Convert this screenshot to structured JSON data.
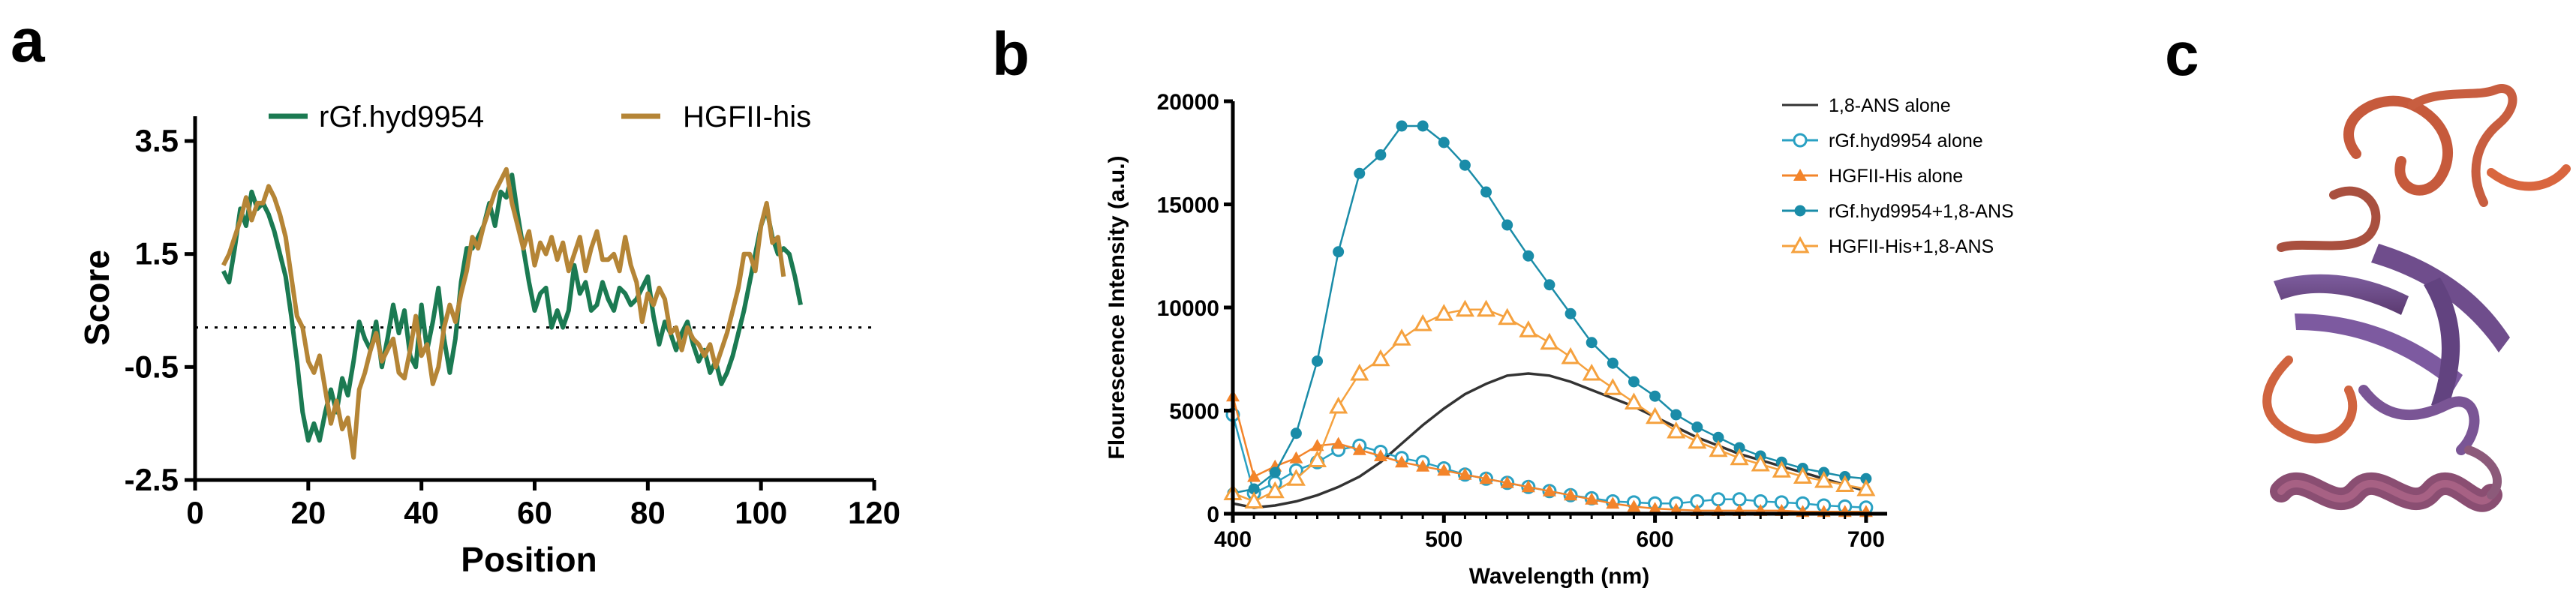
{
  "panels": {
    "a": "a",
    "b": "b",
    "c": "c"
  },
  "chart_data": [
    {
      "id": "a",
      "type": "line",
      "title": "",
      "xlabel": "Position",
      "ylabel": "Score",
      "xlim": [
        0,
        120
      ],
      "ylim": [
        -2.5,
        4.2
      ],
      "xticks": [
        0,
        20,
        40,
        60,
        80,
        100,
        120
      ],
      "yticks": [
        -2.5,
        -0.5,
        1.5,
        3.5
      ],
      "xtick_labels": [
        "0",
        "20",
        "40",
        "60",
        "80",
        "100",
        "120"
      ],
      "ytick_labels": [
        "-2.5",
        "-0.5",
        "1.5",
        "3.5"
      ],
      "reference_line": 0.2,
      "legend": [
        "rGf.hyd9954",
        "HGFII-his"
      ],
      "series": [
        {
          "name": "rGf.hyd9954",
          "color": "#1b7a52",
          "x": [
            5,
            6,
            7,
            8,
            9,
            10,
            11,
            12,
            13,
            14,
            15,
            16,
            17,
            18,
            19,
            20,
            21,
            22,
            23,
            24,
            25,
            26,
            27,
            28,
            29,
            30,
            31,
            32,
            33,
            34,
            35,
            36,
            37,
            38,
            39,
            40,
            41,
            42,
            43,
            44,
            45,
            46,
            47,
            48,
            49,
            50,
            51,
            52,
            53,
            54,
            55,
            56,
            57,
            58,
            59,
            60,
            61,
            62,
            63,
            64,
            65,
            66,
            67,
            68,
            69,
            70,
            71,
            72,
            73,
            74,
            75,
            76,
            77,
            78,
            79,
            80,
            81,
            82,
            83,
            84,
            85,
            86,
            87,
            88,
            89,
            90,
            91,
            92,
            93,
            94,
            95,
            96,
            97,
            98,
            99,
            100,
            101,
            102,
            103,
            104,
            105,
            106,
            107
          ],
          "values": [
            1.2,
            1.0,
            1.6,
            2.3,
            2.0,
            2.6,
            2.3,
            2.4,
            2.2,
            1.9,
            1.5,
            1.1,
            0.4,
            -0.4,
            -1.3,
            -1.8,
            -1.5,
            -1.8,
            -1.3,
            -0.9,
            -1.3,
            -0.7,
            -1.0,
            -0.4,
            0.3,
            0.0,
            -0.2,
            0.3,
            -0.5,
            0.0,
            0.6,
            0.1,
            0.5,
            -0.3,
            -0.5,
            0.6,
            -0.2,
            0.3,
            0.9,
            0.0,
            -0.6,
            0.0,
            1.0,
            1.6,
            1.6,
            1.8,
            2.0,
            2.4,
            2.0,
            2.6,
            2.5,
            2.9,
            2.2,
            1.6,
            1.0,
            0.5,
            0.8,
            0.9,
            0.2,
            0.5,
            0.2,
            0.5,
            1.3,
            0.8,
            1.0,
            0.5,
            0.6,
            1.0,
            0.7,
            0.5,
            0.9,
            0.8,
            0.6,
            0.7,
            0.9,
            1.1,
            0.4,
            -0.1,
            0.3,
            0.1,
            -0.2,
            0.1,
            0.3,
            -0.1,
            -0.4,
            -0.2,
            -0.6,
            -0.4,
            -0.8,
            -0.6,
            -0.3,
            0.1,
            0.5,
            1.0,
            1.5,
            2.0,
            2.3,
            1.8,
            1.5,
            1.6,
            1.5,
            1.1,
            0.6
          ]
        },
        {
          "name": "HGFII-his",
          "color": "#b58536",
          "x": [
            5,
            6,
            7,
            8,
            9,
            10,
            11,
            12,
            13,
            14,
            15,
            16,
            17,
            18,
            19,
            20,
            21,
            22,
            23,
            24,
            25,
            26,
            27,
            28,
            29,
            30,
            31,
            32,
            33,
            34,
            35,
            36,
            37,
            38,
            39,
            40,
            41,
            42,
            43,
            44,
            45,
            46,
            47,
            48,
            49,
            50,
            51,
            52,
            53,
            54,
            55,
            56,
            57,
            58,
            59,
            60,
            61,
            62,
            63,
            64,
            65,
            66,
            67,
            68,
            69,
            70,
            71,
            72,
            73,
            74,
            75,
            76,
            77,
            78,
            79,
            80,
            81,
            82,
            83,
            84,
            85,
            86,
            87,
            88,
            89,
            90,
            91,
            92,
            93,
            94,
            95,
            96,
            97,
            98,
            99,
            100,
            101,
            102,
            103,
            104
          ],
          "values": [
            1.3,
            1.5,
            1.8,
            2.1,
            2.5,
            2.1,
            2.4,
            2.4,
            2.7,
            2.5,
            2.2,
            1.8,
            1.1,
            0.4,
            0.2,
            -0.4,
            -0.6,
            -0.3,
            -0.9,
            -1.5,
            -1.1,
            -1.6,
            -1.4,
            -2.1,
            -0.9,
            -0.6,
            -0.2,
            0.1,
            -0.4,
            -0.2,
            0.0,
            -0.6,
            -0.7,
            -0.2,
            0.4,
            -0.3,
            -0.1,
            -0.8,
            -0.5,
            0.2,
            0.6,
            0.3,
            0.8,
            1.2,
            1.8,
            1.6,
            2.0,
            2.3,
            2.6,
            2.8,
            3.0,
            2.4,
            2.0,
            1.6,
            1.9,
            1.3,
            1.7,
            1.5,
            1.8,
            1.4,
            1.7,
            1.2,
            1.5,
            1.8,
            1.2,
            1.6,
            1.9,
            1.4,
            1.4,
            1.5,
            1.2,
            1.8,
            1.3,
            1.0,
            0.3,
            0.8,
            0.6,
            0.9,
            0.7,
            0.1,
            0.2,
            -0.2,
            0.2,
            0.0,
            -0.1,
            -0.3,
            -0.1,
            -0.5,
            -0.2,
            0.1,
            0.5,
            0.9,
            1.5,
            1.5,
            1.2,
            2.0,
            2.4,
            1.7,
            1.8,
            1.1
          ]
        }
      ]
    },
    {
      "id": "b",
      "type": "line",
      "title": "",
      "xlabel": "Wavelength (nm)",
      "ylabel": "Flourescence Intensity (a.u.)",
      "xlim": [
        400,
        710
      ],
      "ylim": [
        0,
        20000
      ],
      "xticks": [
        400,
        500,
        600,
        700
      ],
      "yticks": [
        0,
        5000,
        10000,
        15000,
        20000
      ],
      "xtick_labels": [
        "400",
        "500",
        "600",
        "700"
      ],
      "ytick_labels": [
        "0",
        "5000",
        "10000",
        "15000",
        "20000"
      ],
      "legend": [
        "1,8-ANS alone",
        "rGf.hyd9954 alone",
        "HGFII-His alone",
        "rGf.hyd9954+1,8-ANS",
        "HGFII-His+1,8-ANS"
      ],
      "series": [
        {
          "name": "1,8-ANS alone",
          "color": "#333333",
          "marker": "none",
          "x": [
            400,
            410,
            420,
            430,
            440,
            450,
            460,
            470,
            480,
            490,
            500,
            510,
            520,
            530,
            540,
            550,
            560,
            570,
            580,
            590,
            600,
            610,
            620,
            630,
            640,
            650,
            660,
            670,
            680,
            690,
            700
          ],
          "values": [
            500,
            300,
            400,
            600,
            900,
            1300,
            1800,
            2500,
            3400,
            4300,
            5100,
            5800,
            6300,
            6700,
            6800,
            6700,
            6400,
            6000,
            5600,
            5200,
            4700,
            4200,
            3700,
            3300,
            2900,
            2600,
            2300,
            2000,
            1700,
            1400,
            1100
          ]
        },
        {
          "name": "rGf.hyd9954 alone",
          "color": "#2aa1c3",
          "marker": "open-circle",
          "x": [
            400,
            410,
            420,
            430,
            440,
            450,
            460,
            470,
            480,
            490,
            500,
            510,
            520,
            530,
            540,
            550,
            560,
            570,
            580,
            590,
            600,
            610,
            620,
            630,
            640,
            650,
            660,
            670,
            680,
            690,
            700
          ],
          "values": [
            4800,
            1000,
            1500,
            2100,
            2500,
            3100,
            3300,
            3000,
            2700,
            2500,
            2200,
            1900,
            1700,
            1500,
            1300,
            1100,
            900,
            750,
            600,
            550,
            500,
            500,
            600,
            700,
            700,
            600,
            550,
            500,
            400,
            350,
            300
          ]
        },
        {
          "name": "HGFII-His alone",
          "color": "#f3842a",
          "marker": "filled-triangle",
          "x": [
            400,
            410,
            420,
            430,
            440,
            450,
            460,
            470,
            480,
            490,
            500,
            510,
            520,
            530,
            540,
            550,
            560,
            570,
            580,
            590,
            600,
            610,
            620,
            630,
            640,
            650,
            660,
            670,
            680,
            690,
            700
          ],
          "values": [
            5700,
            1800,
            2300,
            2700,
            3300,
            3400,
            3100,
            2800,
            2500,
            2300,
            2100,
            1900,
            1700,
            1500,
            1300,
            1100,
            900,
            700,
            500,
            350,
            250,
            200,
            150,
            150,
            150,
            150,
            150,
            100,
            100,
            100,
            100
          ]
        },
        {
          "name": "rGf.hyd9954+1,8-ANS",
          "color": "#1a8ca8",
          "marker": "filled-circle",
          "x": [
            400,
            410,
            420,
            430,
            440,
            450,
            460,
            470,
            480,
            490,
            500,
            510,
            520,
            530,
            540,
            550,
            560,
            570,
            580,
            590,
            600,
            610,
            620,
            630,
            640,
            650,
            660,
            670,
            680,
            690,
            700
          ],
          "values": [
            1000,
            1200,
            2000,
            3900,
            7400,
            12700,
            16500,
            17400,
            18800,
            18800,
            18000,
            16900,
            15600,
            14000,
            12500,
            11100,
            9700,
            8300,
            7300,
            6400,
            5700,
            4800,
            4200,
            3700,
            3200,
            2800,
            2500,
            2200,
            2000,
            1800,
            1700
          ]
        },
        {
          "name": "HGFII-His+1,8-ANS",
          "color": "#f5a13e",
          "marker": "open-triangle",
          "x": [
            400,
            410,
            420,
            430,
            440,
            450,
            460,
            470,
            480,
            490,
            500,
            510,
            520,
            530,
            540,
            550,
            560,
            570,
            580,
            590,
            600,
            610,
            620,
            630,
            640,
            650,
            660,
            670,
            680,
            690,
            700
          ],
          "values": [
            1000,
            600,
            1100,
            1700,
            2600,
            5200,
            6800,
            7500,
            8500,
            9200,
            9700,
            9900,
            9900,
            9500,
            8900,
            8300,
            7600,
            6800,
            6100,
            5400,
            4700,
            4000,
            3500,
            3100,
            2700,
            2400,
            2100,
            1800,
            1600,
            1400,
            1200
          ]
        }
      ]
    }
  ]
}
